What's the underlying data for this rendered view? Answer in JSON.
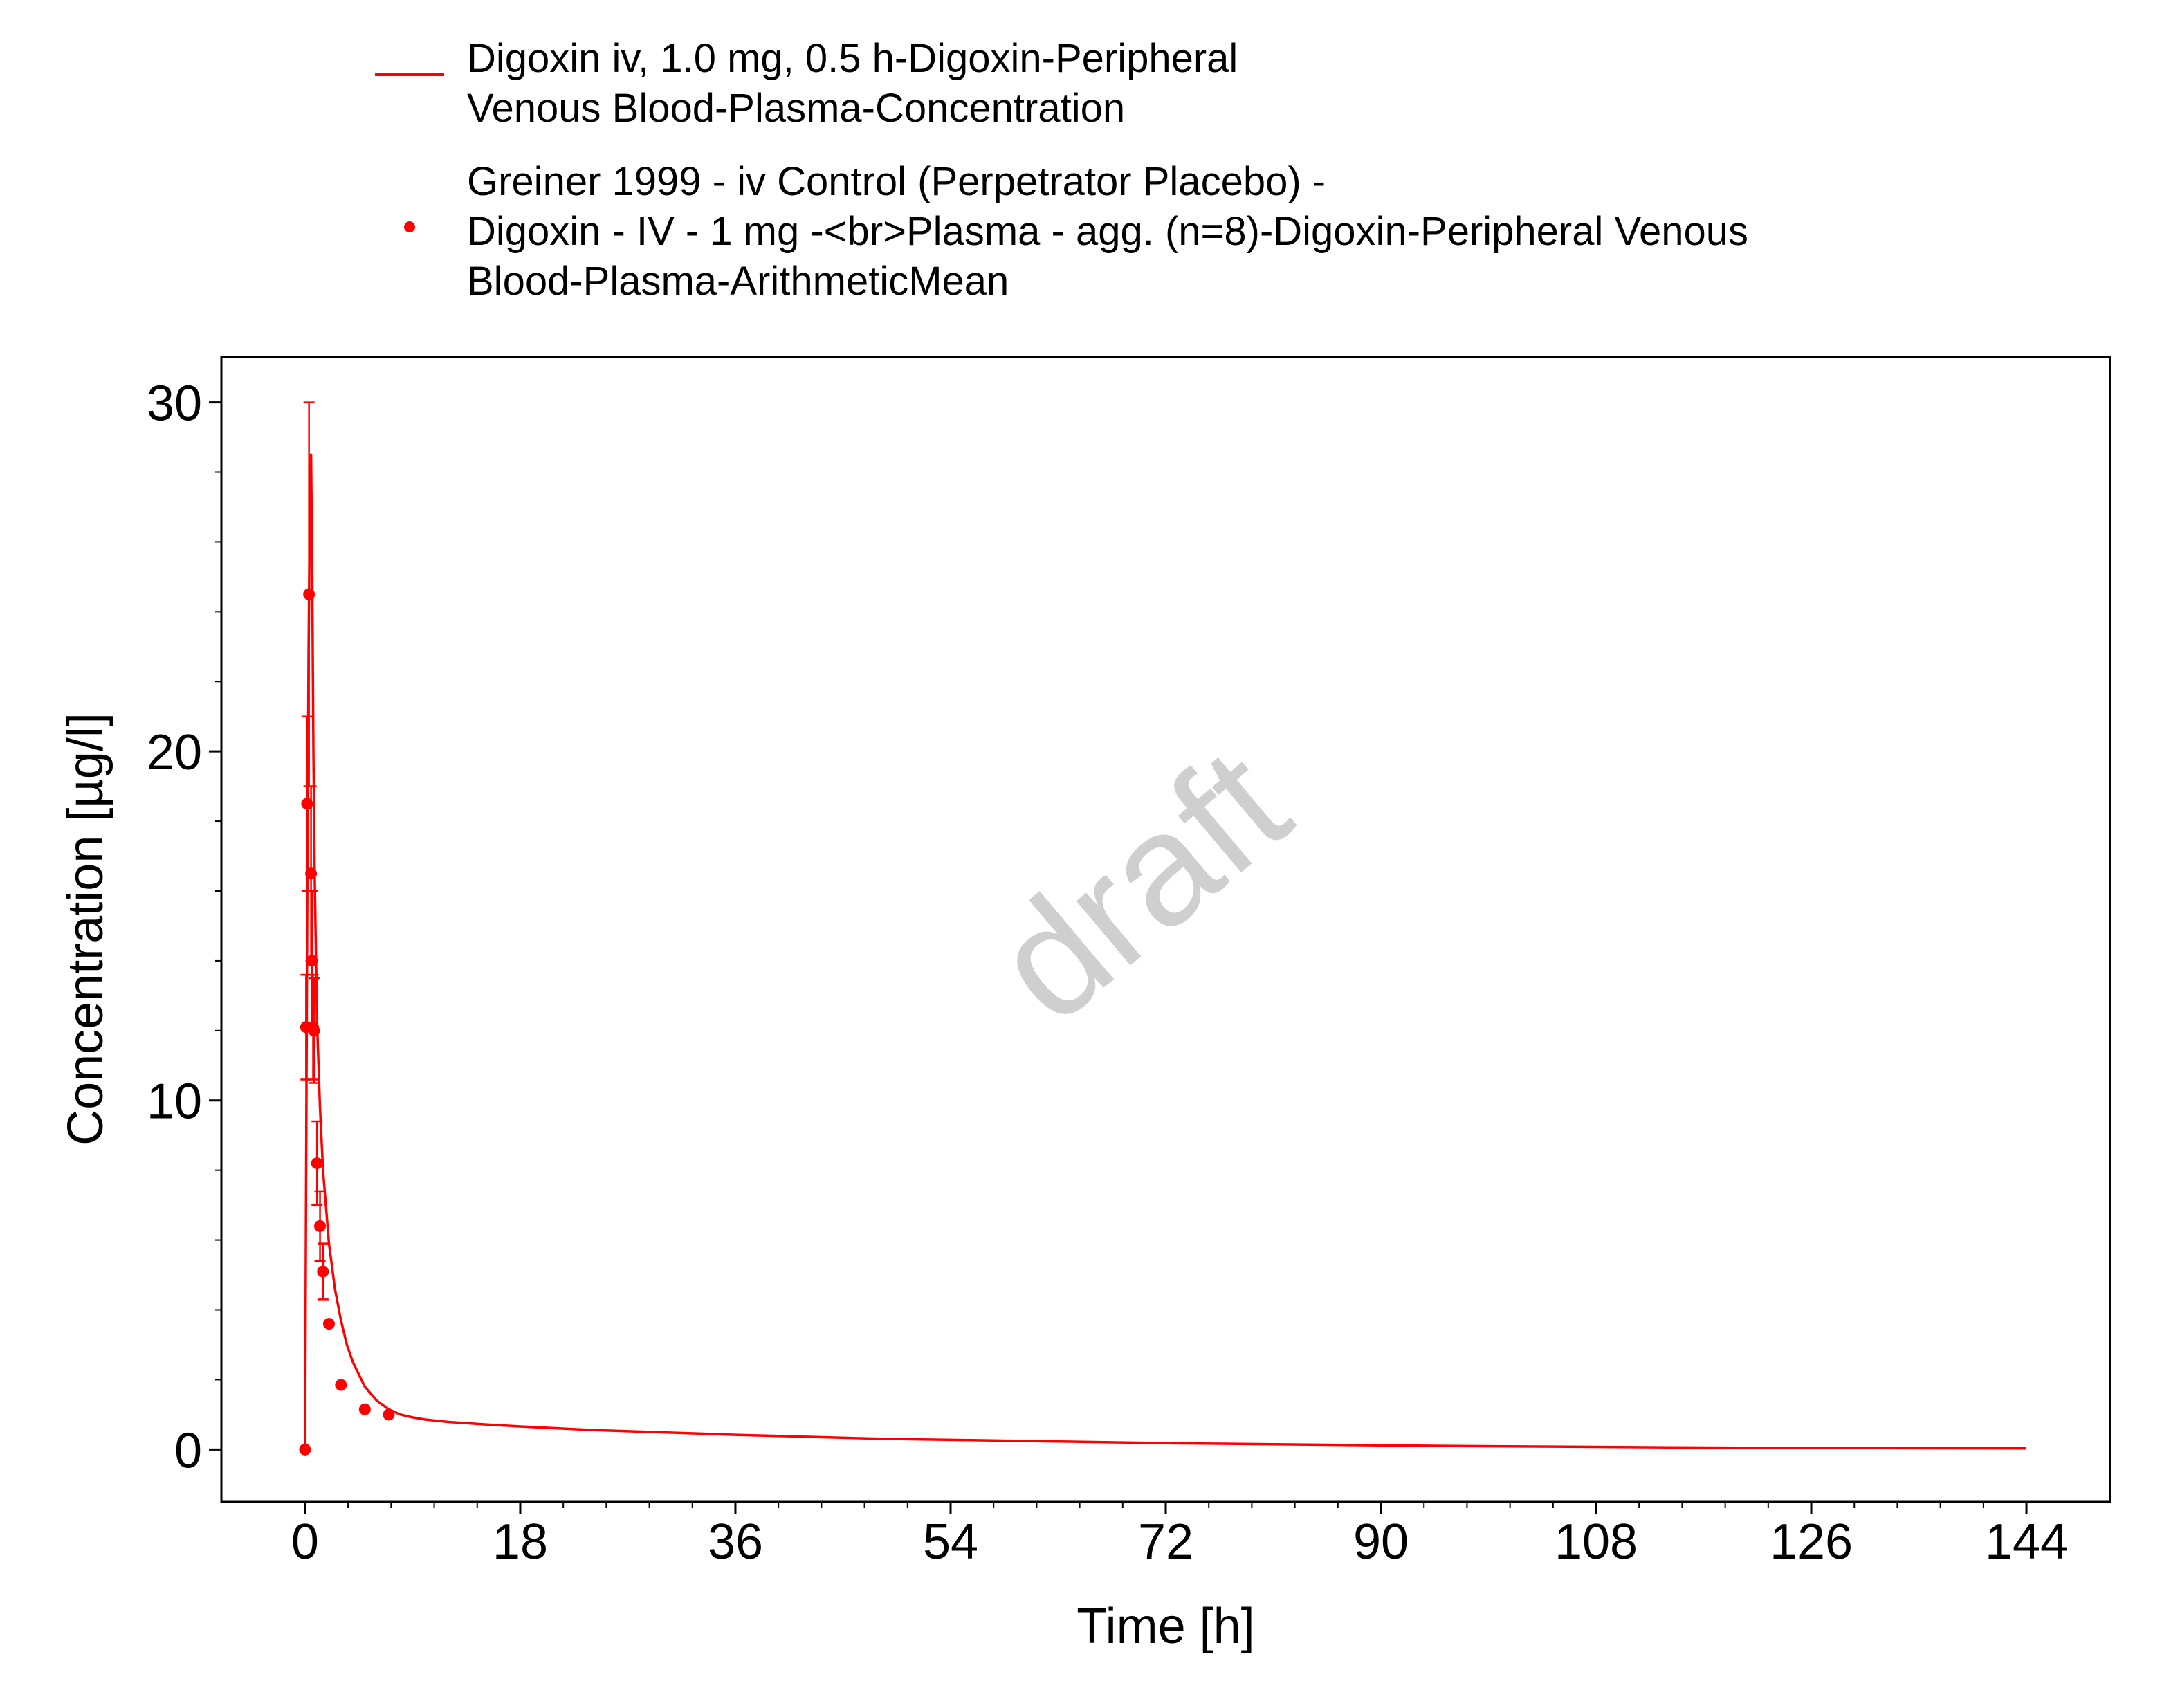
{
  "chart_data": {
    "type": "line",
    "xlabel": "Time [h]",
    "ylabel": "Concentration [µg/l]",
    "xlim": [
      -7,
      151
    ],
    "ylim": [
      -1.5,
      31.3
    ],
    "xticks": [
      0,
      18,
      36,
      54,
      72,
      90,
      108,
      126,
      144
    ],
    "yticks": [
      0,
      10,
      20,
      30
    ],
    "grid": false,
    "legend_position": "top",
    "watermark": "draft",
    "color": "#ff0000",
    "series": [
      {
        "name": "Digoxin iv, 1.0 mg, 0.5 h-Digoxin-Peripheral Venous Blood-Plasma-Concentration",
        "name_lines": [
          "Digoxin iv, 1.0 mg, 0.5 h-Digoxin-Peripheral",
          "Venous Blood-Plasma-Concentration"
        ],
        "kind": "line",
        "x": [
          0,
          0.1,
          0.2,
          0.3,
          0.4,
          0.5,
          0.6,
          0.7,
          0.8,
          1.0,
          1.25,
          1.5,
          2,
          2.5,
          3,
          3.5,
          4,
          5,
          6,
          7,
          8,
          9,
          10,
          12,
          15,
          18,
          24,
          36,
          48,
          72,
          96,
          120,
          144
        ],
        "y": [
          0,
          9.0,
          17.0,
          23.0,
          27.0,
          28.5,
          25.0,
          20.0,
          16.5,
          12.3,
          9.8,
          8.0,
          5.9,
          4.6,
          3.7,
          3.0,
          2.5,
          1.8,
          1.4,
          1.15,
          1.0,
          0.92,
          0.86,
          0.79,
          0.72,
          0.66,
          0.56,
          0.42,
          0.31,
          0.18,
          0.1,
          0.05,
          0.03
        ]
      },
      {
        "name": "Greiner 1999 - iv Control (Perpetrator Placebo) - Digoxin - IV - 1 mg -<br>Plasma - agg. (n=8)-Digoxin-Peripheral Venous Blood-Plasma-ArithmeticMean",
        "name_lines": [
          "Greiner 1999 - iv Control (Perpetrator Placebo) -",
          "Digoxin - IV - 1 mg -<br>Plasma - agg. (n=8)-Digoxin-Peripheral Venous",
          "Blood-Plasma-ArithmeticMean"
        ],
        "kind": "scatter",
        "x": [
          0,
          0.08,
          0.17,
          0.33,
          0.5,
          0.58,
          0.67,
          0.75,
          1.0,
          1.25,
          1.5,
          2.0,
          3.0,
          5.0,
          7.0
        ],
        "y": [
          0,
          12.1,
          18.5,
          24.5,
          16.5,
          14.0,
          12.1,
          12.0,
          8.2,
          6.4,
          5.1,
          3.6,
          1.85,
          1.15,
          1.0
        ],
        "error": [
          0,
          1.5,
          2.5,
          5.5,
          2.5,
          2.0,
          1.5,
          1.5,
          1.2,
          1.0,
          0.8,
          0,
          0,
          0,
          0
        ]
      }
    ]
  }
}
